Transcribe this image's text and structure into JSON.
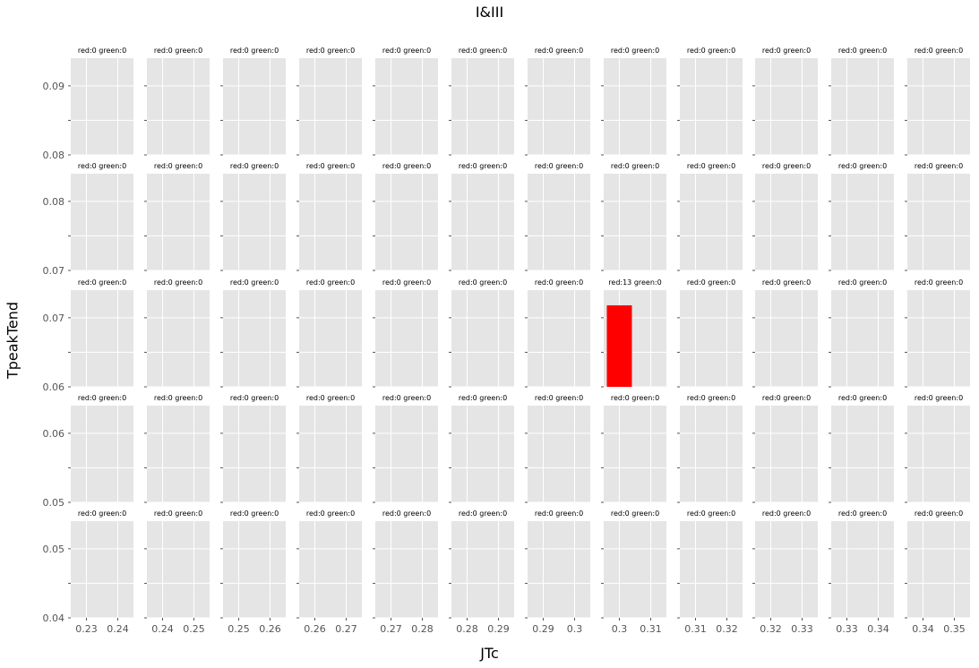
{
  "figure": {
    "suptitle": "I&III",
    "xlabel": "JTc",
    "ylabel": "TpeakTend"
  },
  "chart_data": {
    "type": "bar",
    "layout": "grid of small multiples (5 rows x 12 columns), y bins top-to-bottom, x bins left-to-right",
    "grid": true,
    "background": "#e5e5e5",
    "gridline_color": "#ffffff",
    "colors": {
      "red": "#ff0000",
      "green": "#00a000"
    },
    "row_ylims": [
      [
        0.08,
        0.094
      ],
      [
        0.07,
        0.084
      ],
      [
        0.06,
        0.074
      ],
      [
        0.05,
        0.064
      ],
      [
        0.04,
        0.054
      ]
    ],
    "row_ytick_labels": [
      [
        "0.09",
        "0.08"
      ],
      [
        "0.08",
        "0.07"
      ],
      [
        "0.07",
        "0.06"
      ],
      [
        "0.06",
        "0.05"
      ],
      [
        "0.05",
        "0.04"
      ]
    ],
    "row_ytick_values": [
      [
        0.09,
        0.08
      ],
      [
        0.08,
        0.07
      ],
      [
        0.07,
        0.06
      ],
      [
        0.06,
        0.05
      ],
      [
        0.05,
        0.04
      ]
    ],
    "col_xlims": [
      [
        0.225,
        0.245
      ],
      [
        0.235,
        0.255
      ],
      [
        0.245,
        0.265
      ],
      [
        0.255,
        0.275
      ],
      [
        0.265,
        0.285
      ],
      [
        0.275,
        0.295
      ],
      [
        0.285,
        0.305
      ],
      [
        0.295,
        0.315
      ],
      [
        0.305,
        0.325
      ],
      [
        0.315,
        0.335
      ],
      [
        0.325,
        0.345
      ],
      [
        0.335,
        0.355
      ]
    ],
    "col_xtick_labels": [
      [
        "0.23",
        "0.24"
      ],
      [
        "0.24",
        "0.25"
      ],
      [
        "0.25",
        "0.26"
      ],
      [
        "0.26",
        "0.27"
      ],
      [
        "0.27",
        "0.28"
      ],
      [
        "0.28",
        "0.29"
      ],
      [
        "0.29",
        "0.3"
      ],
      [
        "0.3",
        "0.31"
      ],
      [
        "0.31",
        "0.32"
      ],
      [
        "0.32",
        "0.33"
      ],
      [
        "0.33",
        "0.34"
      ],
      [
        "0.34",
        "0.35"
      ]
    ],
    "col_xtick_values": [
      [
        0.23,
        0.24
      ],
      [
        0.24,
        0.25
      ],
      [
        0.25,
        0.26
      ],
      [
        0.26,
        0.27
      ],
      [
        0.27,
        0.28
      ],
      [
        0.28,
        0.29
      ],
      [
        0.29,
        0.3
      ],
      [
        0.3,
        0.31
      ],
      [
        0.31,
        0.32
      ],
      [
        0.32,
        0.33
      ],
      [
        0.33,
        0.34
      ],
      [
        0.34,
        0.35
      ]
    ],
    "panel_titles": [
      [
        "red:0 green:0",
        "red:0 green:0",
        "red:0 green:0",
        "red:0 green:0",
        "red:0 green:0",
        "red:0 green:0",
        "red:0 green:0",
        "red:0 green:0",
        "red:0 green:0",
        "red:0 green:0",
        "red:0 green:0",
        "red:0 green:0"
      ],
      [
        "red:0 green:0",
        "red:0 green:0",
        "red:0 green:0",
        "red:0 green:0",
        "red:0 green:0",
        "red:0 green:0",
        "red:0 green:0",
        "red:0 green:0",
        "red:0 green:0",
        "red:0 green:0",
        "red:0 green:0",
        "red:0 green:0"
      ],
      [
        "red:0 green:0",
        "red:0 green:0",
        "red:0 green:0",
        "red:0 green:0",
        "red:0 green:0",
        "red:0 green:0",
        "red:0 green:0",
        "red:13 green:0",
        "red:0 green:0",
        "red:0 green:0",
        "red:0 green:0",
        "red:0 green:0"
      ],
      [
        "red:0 green:0",
        "red:0 green:0",
        "red:0 green:0",
        "red:0 green:0",
        "red:0 green:0",
        "red:0 green:0",
        "red:0 green:0",
        "red:0 green:0",
        "red:0 green:0",
        "red:0 green:0",
        "red:0 green:0",
        "red:0 green:0"
      ],
      [
        "red:0 green:0",
        "red:0 green:0",
        "red:0 green:0",
        "red:0 green:0",
        "red:0 green:0",
        "red:0 green:0",
        "red:0 green:0",
        "red:0 green:0",
        "red:0 green:0",
        "red:0 green:0",
        "red:0 green:0",
        "red:0 green:0"
      ]
    ],
    "bars": [
      {
        "row": 2,
        "col": 7,
        "color": "red",
        "x_start": 0.296,
        "x_end": 0.304,
        "y_start": 0.06,
        "y_end": 0.0718,
        "count": 13
      }
    ]
  }
}
